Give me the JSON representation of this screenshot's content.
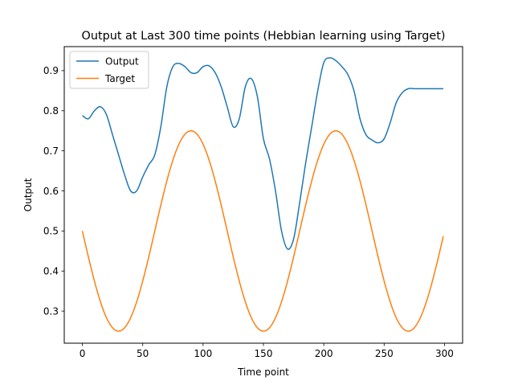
{
  "chart_data": {
    "type": "line",
    "title": "Output at Last 300 time points (Hebbian learning using Target)",
    "xlabel": "Time point",
    "ylabel": "Output",
    "xlim": [
      -15,
      315
    ],
    "ylim": [
      0.22,
      0.96
    ],
    "xticks": [
      0,
      50,
      100,
      150,
      200,
      250,
      300
    ],
    "yticks": [
      0.3,
      0.4,
      0.5,
      0.6,
      0.7,
      0.8,
      0.9
    ],
    "grid": false,
    "legend_position": "top-left",
    "series": [
      {
        "name": "Output",
        "color": "#1f77b4",
        "x": [
          0,
          5,
          10,
          15,
          20,
          25,
          30,
          35,
          40,
          45,
          50,
          55,
          60,
          65,
          70,
          75,
          80,
          85,
          90,
          95,
          100,
          105,
          110,
          115,
          120,
          125,
          130,
          135,
          140,
          145,
          150,
          155,
          160,
          165,
          170,
          175,
          180,
          185,
          190,
          195,
          200,
          205,
          210,
          215,
          220,
          225,
          230,
          235,
          240,
          245,
          250,
          255,
          260,
          265,
          270,
          275,
          280,
          285,
          290,
          295,
          299
        ],
        "values": [
          0.788,
          0.78,
          0.8,
          0.81,
          0.79,
          0.74,
          0.69,
          0.64,
          0.6,
          0.6,
          0.635,
          0.665,
          0.69,
          0.76,
          0.86,
          0.91,
          0.918,
          0.91,
          0.895,
          0.895,
          0.91,
          0.912,
          0.895,
          0.86,
          0.81,
          0.76,
          0.78,
          0.86,
          0.88,
          0.835,
          0.73,
          0.68,
          0.6,
          0.5,
          0.455,
          0.48,
          0.57,
          0.67,
          0.76,
          0.85,
          0.92,
          0.932,
          0.925,
          0.91,
          0.89,
          0.85,
          0.78,
          0.74,
          0.727,
          0.72,
          0.73,
          0.77,
          0.82,
          0.845,
          0.855,
          0.855,
          0.855,
          0.855,
          0.855,
          0.855,
          0.855
        ]
      },
      {
        "name": "Target",
        "color": "#ff7f0e",
        "function": "0.5 - 0.25*sin(2*pi*x/120)",
        "x_range": [
          0,
          299
        ]
      }
    ]
  }
}
